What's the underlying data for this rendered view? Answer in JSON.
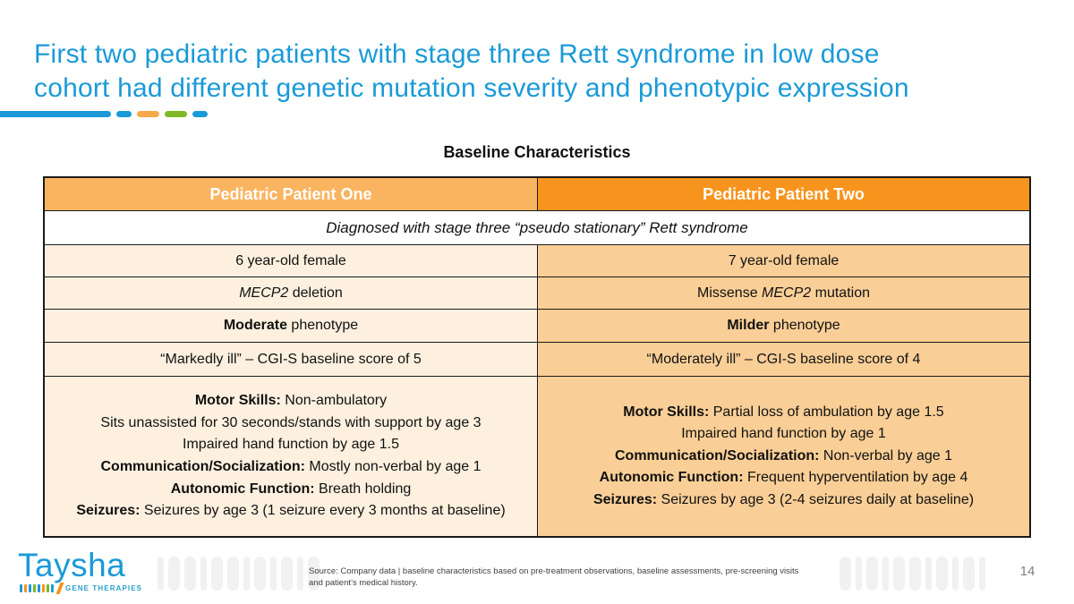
{
  "slide": {
    "title_line1": "First two pediatric patients with stage three Rett syndrome in low dose",
    "title_line2": "cohort had different genetic mutation severity and phenotypic expression"
  },
  "colors": {
    "title_blue": "#1B9AD7",
    "accent_orange": "#F5A94B",
    "accent_green": "#7FBA26",
    "header_left_bg": "#FAB45F",
    "header_right_bg": "#F7941E",
    "cell_left_bg": "#FDF0DF",
    "cell_right_bg": "#FACF97",
    "table_border": "#1A1A1A",
    "logo_blue": "#1B9AD7",
    "logo_orange": "#F7941E"
  },
  "table": {
    "caption": "Baseline Characteristics",
    "headers": [
      "Pediatric Patient One",
      "Pediatric Patient Two"
    ],
    "spanning_row": "Diagnosed with stage three “pseudo stationary” Rett syndrome",
    "rows": [
      {
        "left": [
          {
            "t": "6 year-old female"
          }
        ],
        "right": [
          {
            "t": "7 year-old female"
          }
        ]
      },
      {
        "left": [
          {
            "t": "MECP2",
            "i": true
          },
          {
            "t": " deletion"
          }
        ],
        "right": [
          {
            "t": "Missense "
          },
          {
            "t": "MECP2",
            "i": true
          },
          {
            "t": " mutation"
          }
        ]
      },
      {
        "left": [
          {
            "t": "Moderate",
            "b": true
          },
          {
            "t": " phenotype"
          }
        ],
        "right": [
          {
            "t": "Milder",
            "b": true
          },
          {
            "t": " phenotype"
          }
        ]
      },
      {
        "left": [
          {
            "t": "“Markedly ill” – CGI-S baseline score of 5"
          }
        ],
        "right": [
          {
            "t": "“Moderately ill” – CGI-S baseline score of 4"
          }
        ]
      }
    ],
    "detail": {
      "left": [
        [
          {
            "t": "Motor Skills:",
            "b": true
          },
          {
            "t": " Non-ambulatory"
          }
        ],
        [
          {
            "t": "Sits unassisted for 30 seconds/stands with support by age 3"
          }
        ],
        [
          {
            "t": "Impaired hand function by age 1.5"
          }
        ],
        [
          {
            "t": "Communication/Socialization:",
            "b": true
          },
          {
            "t": " Mostly non-verbal by age 1"
          }
        ],
        [
          {
            "t": "Autonomic Function:",
            "b": true
          },
          {
            "t": " Breath holding"
          }
        ],
        [
          {
            "t": "Seizures:",
            "b": true
          },
          {
            "t": " Seizures by age 3 (1 seizure every 3 months at baseline)"
          }
        ]
      ],
      "right": [
        [
          {
            "t": "Motor Skills:",
            "b": true
          },
          {
            "t": " Partial loss of ambulation by age 1.5"
          }
        ],
        [
          {
            "t": "Impaired hand function by age 1"
          }
        ],
        [
          {
            "t": "Communication/Socialization:",
            "b": true
          },
          {
            "t": " Non-verbal by age 1"
          }
        ],
        [
          {
            "t": "Autonomic Function:",
            "b": true
          },
          {
            "t": " Frequent hyperventilation by age 4"
          }
        ],
        [
          {
            "t": "Seizures:",
            "b": true
          },
          {
            "t": " Seizures by age 3 (2-4 seizures daily at baseline)"
          }
        ]
      ]
    }
  },
  "footer": {
    "logo_text": "Taysha",
    "logo_subtext": "GENE THERAPIES",
    "source_line1": "Source: Company data | baseline characteristics based on pre-treatment observations, baseline assessments, pre-screening visits",
    "source_line2": "and patient’s medical history.",
    "page_number": "14"
  }
}
